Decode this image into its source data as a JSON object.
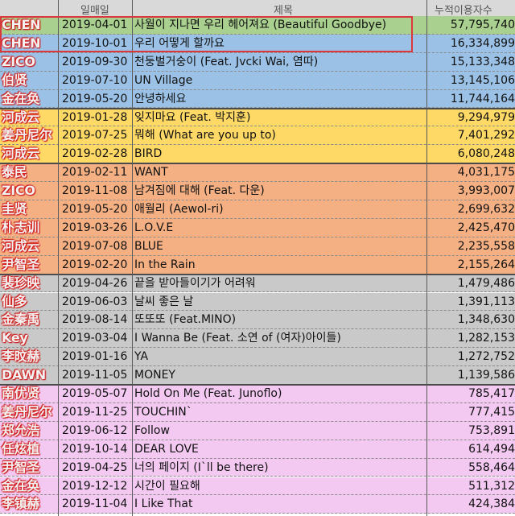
{
  "header": {
    "col_date": "일매일",
    "col_title": "제목",
    "col_count": "누적이용자수"
  },
  "rows": [
    {
      "artist": "CHEN",
      "date": "2019-04-01",
      "title": "사월이 지나면 우리 헤어져요 (Beautiful Goodbye)",
      "count": "57,795,740",
      "color": "#a9d08e"
    },
    {
      "artist": "CHEN",
      "date": "2019-10-01",
      "title": "우리 어떻게 할까요",
      "count": "16,334,899",
      "color": "#9bc2e6"
    },
    {
      "artist": "ZICO",
      "date": "2019-09-30",
      "title": "천둥벌거숭이 (Feat. Jvcki Wai, 염따)",
      "count": "15,133,348",
      "color": "#9bc2e6"
    },
    {
      "artist": "伯贤",
      "date": "2019-07-10",
      "title": "UN Village",
      "count": "13,145,106",
      "color": "#9bc2e6"
    },
    {
      "artist": "金在奂",
      "date": "2019-05-20",
      "title": "안녕하세요",
      "count": "11,744,164",
      "color": "#9bc2e6"
    },
    {
      "artist": "河成云",
      "date": "2019-01-28",
      "title": "잊지마요 (Feat. 박지훈)",
      "count": "9,294,979",
      "color": "#ffd966"
    },
    {
      "artist": "姜丹尼尔",
      "date": "2019-07-25",
      "title": "뭐해 (What are you up to)",
      "count": "7,401,292",
      "color": "#ffd966"
    },
    {
      "artist": "河成云",
      "date": "2019-02-28",
      "title": "BIRD",
      "count": "6,080,248",
      "color": "#ffd966"
    },
    {
      "artist": "泰民",
      "date": "2019-02-11",
      "title": "WANT",
      "count": "4,031,175",
      "color": "#f4b083"
    },
    {
      "artist": "ZICO",
      "date": "2019-11-08",
      "title": "남겨짐에 대해 (Feat. 다운)",
      "count": "3,993,007",
      "color": "#f4b083"
    },
    {
      "artist": "圭贤",
      "date": "2019-05-20",
      "title": "애월리 (Aewol-ri)",
      "count": "2,699,632",
      "color": "#f4b083"
    },
    {
      "artist": "朴志训",
      "date": "2019-03-26",
      "title": "L.O.V.E",
      "count": "2,425,470",
      "color": "#f4b083"
    },
    {
      "artist": "河成云",
      "date": "2019-07-08",
      "title": "BLUE",
      "count": "2,235,558",
      "color": "#f4b083"
    },
    {
      "artist": "尹智圣",
      "date": "2019-02-20",
      "title": "In the Rain",
      "count": "2,155,264",
      "color": "#f4b083"
    },
    {
      "artist": "裴珍映",
      "date": "2019-04-26",
      "title": "끝을 받아들이기가 어려워",
      "count": "1,479,486",
      "color": "#c9c9c9"
    },
    {
      "artist": "仙多",
      "date": "2019-06-03",
      "title": "날씨 좋은 날",
      "count": "1,391,113",
      "color": "#c9c9c9"
    },
    {
      "artist": "金秦禹",
      "date": "2019-08-14",
      "title": "또또또 (Feat.MINO)",
      "count": "1,348,630",
      "color": "#c9c9c9"
    },
    {
      "artist": "Key",
      "date": "2019-03-04",
      "title": "I Wanna Be (Feat. 소연 of (여자)아이들)",
      "count": "1,282,153",
      "color": "#c9c9c9"
    },
    {
      "artist": "李旼赫",
      "date": "2019-01-16",
      "title": "YA",
      "count": "1,272,752",
      "color": "#c9c9c9"
    },
    {
      "artist": "DAWN",
      "date": "2019-11-05",
      "title": "MONEY",
      "count": "1,139,586",
      "color": "#c9c9c9"
    },
    {
      "artist": "南优贤",
      "date": "2019-05-07",
      "title": "Hold On Me (Feat. Junoflo)",
      "count": "785,417",
      "color": "#f3c9f2"
    },
    {
      "artist": "姜丹尼尔",
      "date": "2019-11-25",
      "title": "TOUCHIN`",
      "count": "777,415",
      "color": "#f3c9f2"
    },
    {
      "artist": "郑允浩",
      "date": "2019-06-12",
      "title": "Follow",
      "count": "753,891",
      "color": "#f3c9f2"
    },
    {
      "artist": "任炫植",
      "date": "2019-10-14",
      "title": "DEAR LOVE",
      "count": "614,494",
      "color": "#f3c9f2"
    },
    {
      "artist": "尹智圣",
      "date": "2019-04-25",
      "title": "너의 페이지 (I`ll be there)",
      "count": "558,464",
      "color": "#f3c9f2"
    },
    {
      "artist": "金在奂",
      "date": "2019-12-12",
      "title": "시간이 필요해",
      "count": "511,312",
      "color": "#f3c9f2"
    },
    {
      "artist": "李镇赫",
      "date": "2019-11-04",
      "title": "I Like That",
      "count": "424,384",
      "color": "#f3c9f2"
    }
  ]
}
